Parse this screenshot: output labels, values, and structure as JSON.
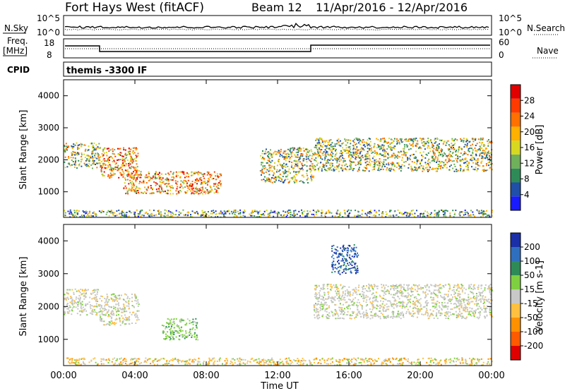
{
  "header": {
    "station": "Fort Hays West (fitACF)",
    "beam": "Beam 12",
    "date_range": "11/Apr/2016 - 12/Apr/2016"
  },
  "panels": {
    "nsky_label": "N.Sky",
    "nsky_ticks": [
      "10^5",
      "10^0"
    ],
    "nsearch_label": "N.Search",
    "nsearch_ticks": [
      "10^5",
      "10^0"
    ],
    "freq_label_1": "Freq.",
    "freq_label_2": "[MHz]",
    "freq_ticks": [
      "18",
      "8"
    ],
    "nave_label": "Nave",
    "nave_ticks": [
      "60",
      "0"
    ],
    "cpid_label": "CPID",
    "cpid_text": "themis -3300 IF"
  },
  "power_colorbar": {
    "title": "Power [dB]",
    "ticks": [
      "4",
      "8",
      "12",
      "16",
      "20",
      "24",
      "28"
    ],
    "colors": [
      "#1a1aff",
      "#1f4fa8",
      "#2e8b57",
      "#6fb05a",
      "#d8d820",
      "#ffb000",
      "#ff7000",
      "#ff3a00",
      "#e00000"
    ]
  },
  "velocity_colorbar": {
    "title": "Velocity [m s-1]",
    "ticks": [
      "200",
      "100",
      "50",
      "15",
      "-15",
      "-50",
      "-100",
      "-200"
    ],
    "colors": [
      "#1a2fa8",
      "#2f6fbf",
      "#2e8b57",
      "#7fd040",
      "#c8c8c8",
      "#ffc040",
      "#ff9000",
      "#ff5a00",
      "#e00000"
    ]
  },
  "chart_data": [
    {
      "type": "heatmap",
      "name": "power",
      "ylabel": "Slant Range [km]",
      "yticks": [
        1000,
        2000,
        3000,
        4000
      ],
      "ylim": [
        200,
        4500
      ],
      "xlim": [
        0,
        24
      ],
      "xticks": [
        0,
        4,
        8,
        12,
        16,
        20,
        24
      ],
      "regions": [
        {
          "x": [
            0,
            2
          ],
          "y": [
            1750,
            2550
          ],
          "level": "mid"
        },
        {
          "x": [
            2,
            4.2
          ],
          "y": [
            1450,
            2400
          ],
          "level": "high"
        },
        {
          "x": [
            3.3,
            8.8
          ],
          "y": [
            950,
            1650
          ],
          "level": "high"
        },
        {
          "x": [
            11,
            14
          ],
          "y": [
            1300,
            2400
          ],
          "level": "mid"
        },
        {
          "x": [
            14,
            24
          ],
          "y": [
            1650,
            2700
          ],
          "level": "mid"
        },
        {
          "x": [
            0,
            24
          ],
          "y": [
            230,
            450
          ],
          "level": "low"
        }
      ]
    },
    {
      "type": "heatmap",
      "name": "velocity",
      "ylabel": "Slant Range [km]",
      "xlabel": "Time UT",
      "yticks": [
        1000,
        2000,
        3000,
        4000
      ],
      "ylim": [
        200,
        4500
      ],
      "xlim": [
        0,
        24
      ],
      "xticks": [
        0,
        4,
        8,
        12,
        16,
        20,
        24
      ],
      "xticklabels": [
        "00:00",
        "04:00",
        "08:00",
        "12:00",
        "16:00",
        "20:00",
        "00:00"
      ],
      "regions": [
        {
          "x": [
            0,
            2
          ],
          "y": [
            1750,
            2550
          ],
          "level": "near-zero"
        },
        {
          "x": [
            2,
            4.2
          ],
          "y": [
            1450,
            2400
          ],
          "level": "near-zero"
        },
        {
          "x": [
            5.5,
            7.5
          ],
          "y": [
            1000,
            1650
          ],
          "level": "positive"
        },
        {
          "x": [
            15,
            16.5
          ],
          "y": [
            3000,
            3900
          ],
          "level": "high-positive"
        },
        {
          "x": [
            14,
            24
          ],
          "y": [
            1650,
            2700
          ],
          "level": "near-zero"
        },
        {
          "x": [
            0,
            24
          ],
          "y": [
            230,
            450
          ],
          "level": "negative"
        }
      ]
    }
  ]
}
